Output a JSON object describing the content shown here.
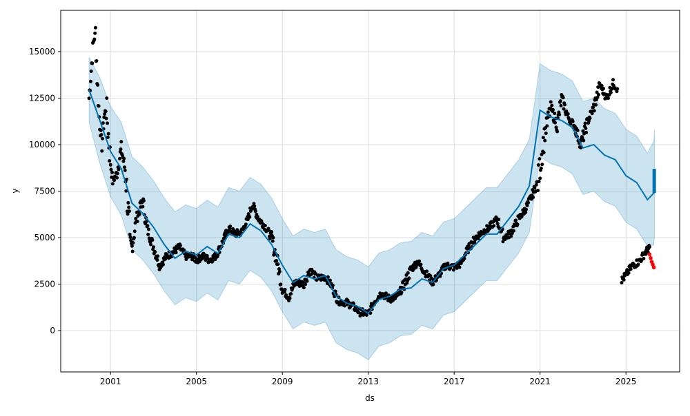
{
  "chart_data": {
    "type": "line",
    "title": "",
    "xlabel": "ds",
    "ylabel": "y",
    "xlim": [
      1998.68,
      2027.5
    ],
    "ylim": [
      -2220,
      17220
    ],
    "grid": true,
    "x_ticks": [
      2001,
      2005,
      2009,
      2013,
      2017,
      2021,
      2025
    ],
    "x_tick_labels": [
      "2001",
      "2005",
      "2009",
      "2013",
      "2017",
      "2021",
      "2025"
    ],
    "y_ticks": [
      0,
      2500,
      5000,
      7500,
      10000,
      12500,
      15000
    ],
    "y_tick_labels": [
      "0",
      "2500",
      "5000",
      "7500",
      "10000",
      "12500",
      "15000"
    ],
    "colors": {
      "actual": "#000000",
      "forecast": "#0072B2",
      "interval": "#0072B2",
      "holdout": "#ff0000"
    },
    "forecast": {
      "name": "yhat",
      "x": [
        2000.0,
        2000.5,
        2001.0,
        2001.5,
        2002.0,
        2002.5,
        2003.0,
        2003.5,
        2004.0,
        2004.5,
        2005.0,
        2005.5,
        2006.0,
        2006.5,
        2007.0,
        2007.5,
        2008.0,
        2008.5,
        2009.0,
        2009.5,
        2010.0,
        2010.5,
        2011.0,
        2011.5,
        2012.0,
        2012.5,
        2013.0,
        2013.5,
        2014.0,
        2014.5,
        2015.0,
        2015.5,
        2016.0,
        2016.5,
        2017.0,
        2017.5,
        2018.0,
        2018.5,
        2019.0,
        2019.5,
        2020.0,
        2020.5,
        2021.0,
        2021.5,
        2022.0,
        2022.5,
        2023.0,
        2023.5,
        2024.0,
        2024.5,
        2025.0,
        2025.5,
        2026.0,
        2026.3,
        2026.33
      ],
      "yhat": [
        12960,
        11300,
        9630,
        8700,
        6850,
        6300,
        5560,
        4630,
        3890,
        4260,
        4070,
        4520,
        4150,
        5190,
        5000,
        5740,
        5370,
        4630,
        3520,
        2590,
        2960,
        2780,
        2960,
        1850,
        1480,
        1300,
        930,
        1670,
        1850,
        2220,
        2300,
        2780,
        2590,
        3330,
        3520,
        4070,
        4630,
        5190,
        5190,
        5930,
        6670,
        7780,
        11850,
        11480,
        11300,
        10930,
        9820,
        10000,
        9440,
        9190,
        8330,
        7960,
        7040,
        7400,
        8700
      ],
      "yhat_lower": [
        11200,
        9000,
        7200,
        6200,
        4350,
        3800,
        3060,
        2130,
        1390,
        1760,
        1570,
        2020,
        1650,
        2690,
        2500,
        3240,
        2870,
        2130,
        1020,
        90,
        460,
        280,
        460,
        -650,
        -1020,
        -1200,
        -1570,
        -830,
        -650,
        -280,
        -200,
        280,
        90,
        830,
        1020,
        1570,
        2130,
        2690,
        2690,
        3430,
        4170,
        5280,
        9350,
        8980,
        8800,
        8430,
        7320,
        7500,
        6940,
        6690,
        5830,
        5460,
        4540,
        4600,
        5200
      ],
      "yhat_upper": [
        14700,
        13600,
        12060,
        11200,
        9350,
        8800,
        8060,
        7130,
        6390,
        6760,
        6570,
        7020,
        6650,
        7690,
        7500,
        8240,
        7870,
        7130,
        6020,
        5090,
        5460,
        5280,
        5460,
        4350,
        3980,
        3800,
        3430,
        4170,
        4350,
        4720,
        4800,
        5280,
        5090,
        5830,
        6020,
        6570,
        7130,
        7690,
        7690,
        8430,
        9170,
        10280,
        14350,
        13980,
        13800,
        13430,
        12320,
        12500,
        11940,
        11690,
        10830,
        10460,
        9540,
        10200,
        10800
      ]
    },
    "actual": {
      "name": "y",
      "x": [
        2000.0,
        2000.1,
        2000.2,
        2000.3,
        2000.4,
        2000.5,
        2000.6,
        2000.7,
        2000.8,
        2001.0,
        2001.1,
        2001.3,
        2001.5,
        2001.7,
        2001.9,
        2002.0,
        2002.2,
        2002.5,
        2002.7,
        2003.0,
        2003.3,
        2003.6,
        2003.9,
        2004.2,
        2004.5,
        2004.8,
        2005.0,
        2005.3,
        2005.6,
        2005.9,
        2006.2,
        2006.5,
        2006.8,
        2007.1,
        2007.4,
        2007.6,
        2007.9,
        2008.2,
        2008.5,
        2008.8,
        2009.0,
        2009.3,
        2009.6,
        2010.0,
        2010.3,
        2010.6,
        2011.0,
        2011.3,
        2011.6,
        2012.0,
        2012.3,
        2012.6,
        2013.0,
        2013.3,
        2013.6,
        2014.0,
        2014.3,
        2014.6,
        2015.0,
        2015.3,
        2015.6,
        2016.0,
        2016.3,
        2016.6,
        2017.0,
        2017.3,
        2017.6,
        2018.0,
        2018.3,
        2018.6,
        2019.0,
        2019.3,
        2019.6,
        2020.0,
        2020.3,
        2020.6,
        2020.9,
        2021.2,
        2021.5,
        2021.8,
        2022.0,
        2022.3,
        2022.6,
        2022.9,
        2023.2,
        2023.5,
        2023.8,
        2024.1,
        2024.4,
        2024.6,
        2024.8,
        2025.0,
        2025.3,
        2025.6,
        2025.9,
        2026.1
      ],
      "y": [
        12500,
        14000,
        15500,
        16000,
        13000,
        11000,
        10000,
        11500,
        12000,
        9000,
        8000,
        8500,
        9800,
        8500,
        5000,
        4500,
        6000,
        7000,
        5500,
        4500,
        3500,
        4000,
        4200,
        4500,
        4000,
        4000,
        3800,
        4000,
        3800,
        4000,
        4700,
        5500,
        5200,
        5300,
        6000,
        6800,
        6000,
        5600,
        5000,
        3500,
        2200,
        1800,
        2600,
        2500,
        3300,
        2800,
        2900,
        2400,
        1600,
        1500,
        1300,
        1000,
        900,
        1600,
        2000,
        1700,
        1800,
        2300,
        3300,
        3700,
        3200,
        2600,
        3000,
        3500,
        3400,
        3600,
        4300,
        5000,
        5300,
        5500,
        6000,
        5000,
        5200,
        6000,
        6500,
        7200,
        8000,
        10500,
        12000,
        11000,
        12500,
        11500,
        11000,
        10000,
        11200,
        12000,
        13200,
        12500,
        13300,
        13000,
        2700,
        3000,
        3500,
        3700,
        4200,
        4500
      ]
    },
    "holdout": {
      "name": "y_test",
      "x": [
        2026.1,
        2026.15,
        2026.2,
        2026.25,
        2026.3
      ],
      "y": [
        4100,
        3900,
        3700,
        3550,
        3400
      ]
    }
  }
}
